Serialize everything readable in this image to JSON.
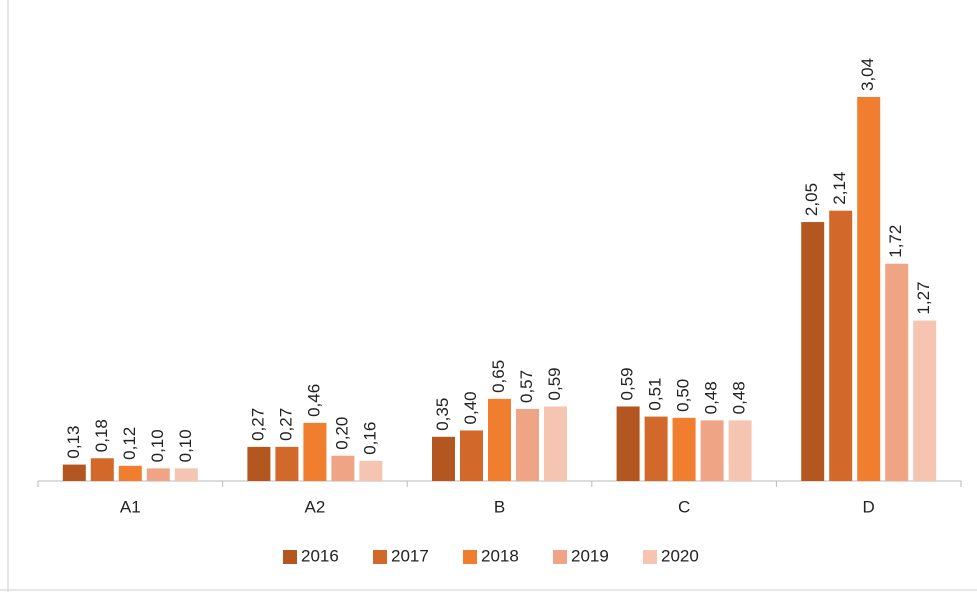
{
  "chart_data": {
    "type": "bar",
    "categories": [
      "A1",
      "A2",
      "B",
      "C",
      "D"
    ],
    "series": [
      {
        "name": "2016",
        "color": "#b4561f",
        "values": [
          0.13,
          0.27,
          0.35,
          0.59,
          2.05
        ],
        "value_labels": [
          "0,13",
          "0,27",
          "0,35",
          "0,59",
          "2,05"
        ]
      },
      {
        "name": "2017",
        "color": "#d2692b",
        "values": [
          0.18,
          0.27,
          0.4,
          0.51,
          2.14
        ],
        "value_labels": [
          "0,18",
          "0,27",
          "0,40",
          "0,51",
          "2,14"
        ]
      },
      {
        "name": "2018",
        "color": "#f07e2e",
        "values": [
          0.12,
          0.46,
          0.65,
          0.5,
          3.04
        ],
        "value_labels": [
          "0,12",
          "0,46",
          "0,65",
          "0,50",
          "3,04"
        ]
      },
      {
        "name": "2019",
        "color": "#f0a486",
        "values": [
          0.1,
          0.2,
          0.57,
          0.48,
          1.72
        ],
        "value_labels": [
          "0,10",
          "0,20",
          "0,57",
          "0,48",
          "1,72"
        ]
      },
      {
        "name": "2020",
        "color": "#f5c5b2",
        "values": [
          0.1,
          0.16,
          0.59,
          0.48,
          1.27
        ],
        "value_labels": [
          "0,10",
          "0,16",
          "0,59",
          "0,48",
          "1,27"
        ]
      }
    ],
    "legend": "bottom"
  }
}
